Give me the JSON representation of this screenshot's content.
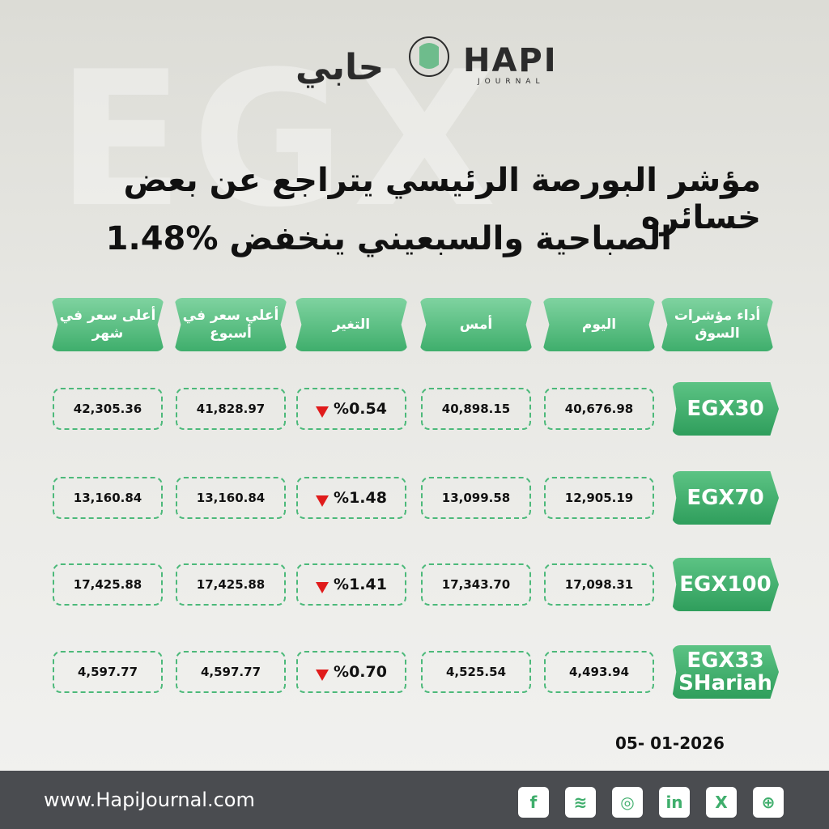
{
  "header": {
    "logo_ar": "حابي",
    "logo_en": "HAPI",
    "logo_sub": "JOURNAL",
    "title": [
      "مؤشر البورصة الرئيسي يتراجع عن بعض خسائره",
      "الصباحية والسبعيني ينخفض %1.48"
    ]
  },
  "table": {
    "columns": [
      "أداء مؤشرات السوق",
      "اليوم",
      "أمس",
      "التغير",
      "أعلي سعر في أسبوع",
      "أعلى سعر في شهر"
    ],
    "rows": [
      [
        "EGX30",
        "40,676.98",
        "40,898.15",
        "%0.54",
        "41,828.97",
        "42,305.36"
      ],
      [
        "EGX70",
        "12,905.19",
        "13,099.58",
        "%1.48",
        "13,160.84",
        "13,160.84"
      ],
      [
        "EGX100",
        "17,098.31",
        "17,343.70",
        "%1.41",
        "17,425.88",
        "17,425.88"
      ],
      [
        "EGX33 SHariah",
        "4,493.94",
        "4,525.54",
        "%0.70",
        "4,597.77",
        "4,597.77"
      ]
    ]
  },
  "date": "05- 01-2026",
  "footer": {
    "url": "www.HapiJournal.com"
  }
}
